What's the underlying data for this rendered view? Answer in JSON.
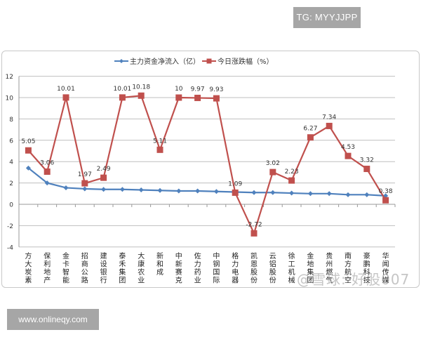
{
  "watermarks": {
    "top_right": "TG: MYYJJPP",
    "bottom_left": "www.onlineqy.com",
    "overlay": "@雪球: 好股007"
  },
  "colors": {
    "series_blue": "#4f81bd",
    "series_red": "#c0504d",
    "grid": "#bfbfbf",
    "badge_bg": "#a6a6a6"
  },
  "chart_data": {
    "type": "line",
    "title": "",
    "xlabel": "",
    "ylabel": "",
    "ylim": [
      -4,
      12
    ],
    "yticks": [
      -4,
      -2,
      0,
      2,
      4,
      6,
      8,
      10,
      12
    ],
    "grid": true,
    "legend_position": "top",
    "categories": [
      "方大炭素",
      "保利地产",
      "金卡智能",
      "招商公路",
      "建设银行",
      "泰禾集团",
      "大康农业",
      "新和成",
      "中新赛克",
      "佐力药业",
      "中钢国际",
      "格力电器",
      "凯恩股份",
      "云铝股份",
      "徐工机械",
      "金地集团",
      "贵州燃气",
      "南方航空",
      "豪鹏科技",
      "华闻传媒"
    ],
    "series": [
      {
        "name": "主力资金净流入（亿）",
        "color": "#4f81bd",
        "marker": "diamond",
        "values": [
          3.4,
          2.0,
          1.55,
          1.45,
          1.4,
          1.4,
          1.35,
          1.3,
          1.25,
          1.25,
          1.2,
          1.15,
          1.1,
          1.1,
          1.05,
          1.0,
          1.0,
          0.9,
          0.9,
          0.8
        ]
      },
      {
        "name": "今日涨跌幅（%）",
        "color": "#c0504d",
        "marker": "square",
        "values": [
          5.05,
          3.06,
          10.01,
          1.97,
          2.49,
          10.01,
          10.18,
          5.11,
          10,
          9.97,
          9.93,
          1.09,
          -2.72,
          3.02,
          2.23,
          6.27,
          7.34,
          4.53,
          3.32,
          0.38
        ],
        "labels": [
          "5.05",
          "3.06",
          "10.01",
          "1.97",
          "2.49",
          "10.01",
          "10.18",
          "5.11",
          "10",
          "9.97",
          "9.93",
          "1.09",
          "-2.72",
          "3.02",
          "2.23",
          "6.27",
          "7.34",
          "4.53",
          "3.32",
          "0.38"
        ]
      }
    ]
  }
}
